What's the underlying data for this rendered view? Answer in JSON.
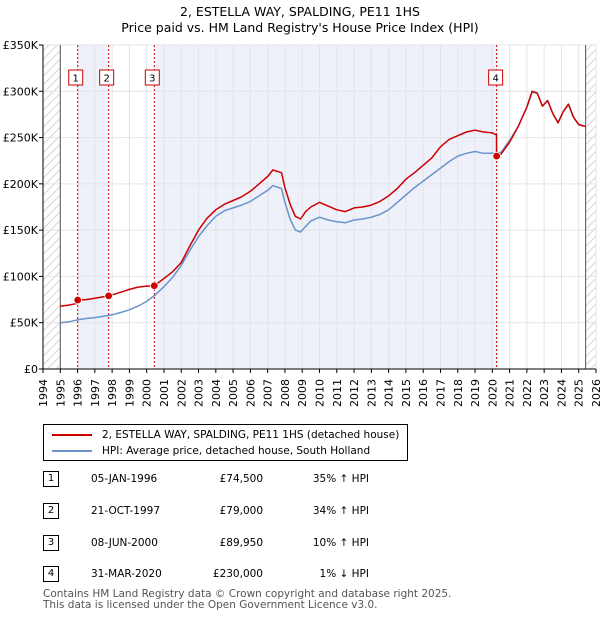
{
  "title_line1": "2, ESTELLA WAY, SPALDING, PE11 1HS",
  "title_line2": "Price paid vs. HM Land Registry's House Price Index (HPI)",
  "legend": {
    "property_label": "2, ESTELLA WAY, SPALDING, PE11 1HS (detached house)",
    "hpi_label": "HPI: Average price, detached house, South Holland"
  },
  "colors": {
    "property": "#cc0000",
    "hpi": "#6a94cc",
    "plot_bg": "#eef0fa",
    "grid": "#ffffff",
    "marker_line": "#cc0000"
  },
  "sales": [
    {
      "num": "1",
      "date": "05-JAN-1996",
      "price": "£74,500",
      "hpi": "35% ↑ HPI"
    },
    {
      "num": "2",
      "date": "21-OCT-1997",
      "price": "£79,000",
      "hpi": "34% ↑ HPI"
    },
    {
      "num": "3",
      "date": "08-JUN-2000",
      "price": "£89,950",
      "hpi": "10% ↑ HPI"
    },
    {
      "num": "4",
      "date": "31-MAR-2020",
      "price": "£230,000",
      "hpi": "1% ↓ HPI"
    }
  ],
  "footer_line1": "Contains HM Land Registry data © Crown copyright and database right 2025.",
  "footer_line2": "This data is licensed under the Open Government Licence v3.0.",
  "chart_data": {
    "type": "line",
    "title": "2, ESTELLA WAY, SPALDING, PE11 1HS",
    "subtitle": "Price paid vs. HM Land Registry's House Price Index (HPI)",
    "xlabel": "",
    "ylabel": "",
    "xlim": [
      1994,
      2026
    ],
    "ylim": [
      0,
      350000
    ],
    "y_ticks": [
      0,
      50000,
      100000,
      150000,
      200000,
      250000,
      300000,
      350000
    ],
    "y_tick_labels": [
      "£0",
      "£50K",
      "£100K",
      "£150K",
      "£200K",
      "£250K",
      "£300K",
      "£350K"
    ],
    "x_ticks": [
      1994,
      1995,
      1996,
      1997,
      1998,
      1999,
      2000,
      2001,
      2002,
      2003,
      2004,
      2005,
      2006,
      2007,
      2008,
      2009,
      2010,
      2011,
      2012,
      2013,
      2014,
      2015,
      2016,
      2017,
      2018,
      2019,
      2020,
      2021,
      2022,
      2023,
      2024,
      2025,
      2026
    ],
    "data_start": 1995.0,
    "data_end": 2025.4,
    "shaded_ranges": [
      [
        1996.01,
        1997.8
      ],
      [
        2000.44,
        2020.25
      ]
    ],
    "hatched_ranges": [
      [
        1994,
        1995
      ],
      [
        2025.4,
        2026
      ]
    ],
    "sale_points": [
      {
        "num": "1",
        "x": 1996.01,
        "y": 74500
      },
      {
        "num": "2",
        "x": 1997.8,
        "y": 79000
      },
      {
        "num": "3",
        "x": 2000.44,
        "y": 89950
      },
      {
        "num": "4",
        "x": 2020.25,
        "y": 230000
      }
    ],
    "series": [
      {
        "name": "2, ESTELLA WAY, SPALDING, PE11 1HS (detached house)",
        "x": [
          1995.0,
          1995.5,
          1996.0,
          1996.01,
          1996.5,
          1997.0,
          1997.5,
          1997.8,
          1998.5,
          1999.0,
          1999.5,
          2000.0,
          2000.44,
          2000.8,
          2001.5,
          2002.0,
          2002.5,
          2003.0,
          2003.5,
          2004.0,
          2004.5,
          2005.0,
          2005.5,
          2006.0,
          2006.5,
          2007.0,
          2007.3,
          2007.8,
          2008.0,
          2008.3,
          2008.6,
          2008.9,
          2009.2,
          2009.5,
          2010.0,
          2010.5,
          2011.0,
          2011.5,
          2012.0,
          2012.5,
          2013.0,
          2013.5,
          2014.0,
          2014.5,
          2015.0,
          2015.5,
          2016.0,
          2016.5,
          2017.0,
          2017.5,
          2018.0,
          2018.5,
          2019.0,
          2019.5,
          2020.0,
          2020.24,
          2020.25,
          2020.5,
          2021.0,
          2021.5,
          2022.0,
          2022.3,
          2022.6,
          2022.9,
          2023.2,
          2023.5,
          2023.8,
          2024.1,
          2024.4,
          2024.7,
          2025.0,
          2025.4
        ],
        "values": [
          68000,
          69000,
          71000,
          74500,
          75000,
          76500,
          78000,
          79000,
          83000,
          86000,
          88500,
          89500,
          89950,
          95000,
          105000,
          115000,
          133000,
          150000,
          163000,
          172000,
          178000,
          182000,
          186000,
          192000,
          200000,
          208000,
          215000,
          212000,
          196000,
          178000,
          165000,
          162000,
          170000,
          175000,
          180000,
          176000,
          172000,
          170000,
          174000,
          175000,
          177000,
          181000,
          187000,
          195000,
          205000,
          212000,
          220000,
          228000,
          240000,
          248000,
          252000,
          256000,
          258000,
          256000,
          255000,
          253000,
          230000,
          232000,
          245000,
          262000,
          283000,
          300000,
          298000,
          284000,
          290000,
          276000,
          266000,
          278000,
          286000,
          272000,
          264000,
          262000
        ]
      },
      {
        "name": "HPI: Average price, detached house, South Holland",
        "x": [
          1995.0,
          1995.5,
          1996.0,
          1996.5,
          1997.0,
          1997.5,
          1998.0,
          1998.5,
          1999.0,
          1999.5,
          2000.0,
          2000.5,
          2001.0,
          2001.5,
          2002.0,
          2002.5,
          2003.0,
          2003.5,
          2004.0,
          2004.5,
          2005.0,
          2005.5,
          2006.0,
          2006.5,
          2007.0,
          2007.3,
          2007.8,
          2008.0,
          2008.3,
          2008.6,
          2008.9,
          2009.2,
          2009.5,
          2010.0,
          2010.5,
          2011.0,
          2011.5,
          2012.0,
          2012.5,
          2013.0,
          2013.5,
          2014.0,
          2014.5,
          2015.0,
          2015.5,
          2016.0,
          2016.5,
          2017.0,
          2017.5,
          2018.0,
          2018.5,
          2019.0,
          2019.5,
          2020.0,
          2020.25,
          2020.5,
          2021.0,
          2021.5,
          2022.0,
          2022.3,
          2022.6,
          2022.9,
          2023.2,
          2023.5,
          2023.8,
          2024.1,
          2024.4,
          2024.7,
          2025.0,
          2025.4
        ],
        "values": [
          50000,
          51000,
          53000,
          54500,
          55500,
          57000,
          58500,
          61000,
          64000,
          68000,
          73000,
          80000,
          89000,
          99000,
          112000,
          128000,
          143000,
          155000,
          165000,
          171000,
          174000,
          177000,
          181000,
          187000,
          193000,
          198000,
          195000,
          180000,
          162000,
          150000,
          148000,
          154000,
          160000,
          164000,
          161000,
          159000,
          158000,
          161000,
          162000,
          164000,
          167000,
          172000,
          180000,
          188000,
          196000,
          203000,
          210000,
          217000,
          224000,
          230000,
          233000,
          235000,
          233000,
          233000,
          233000,
          234000,
          247000,
          262000,
          283000,
          299000,
          298000,
          284000,
          290000,
          276000,
          266000,
          278000,
          286000,
          272000,
          264000,
          262000
        ]
      }
    ]
  }
}
